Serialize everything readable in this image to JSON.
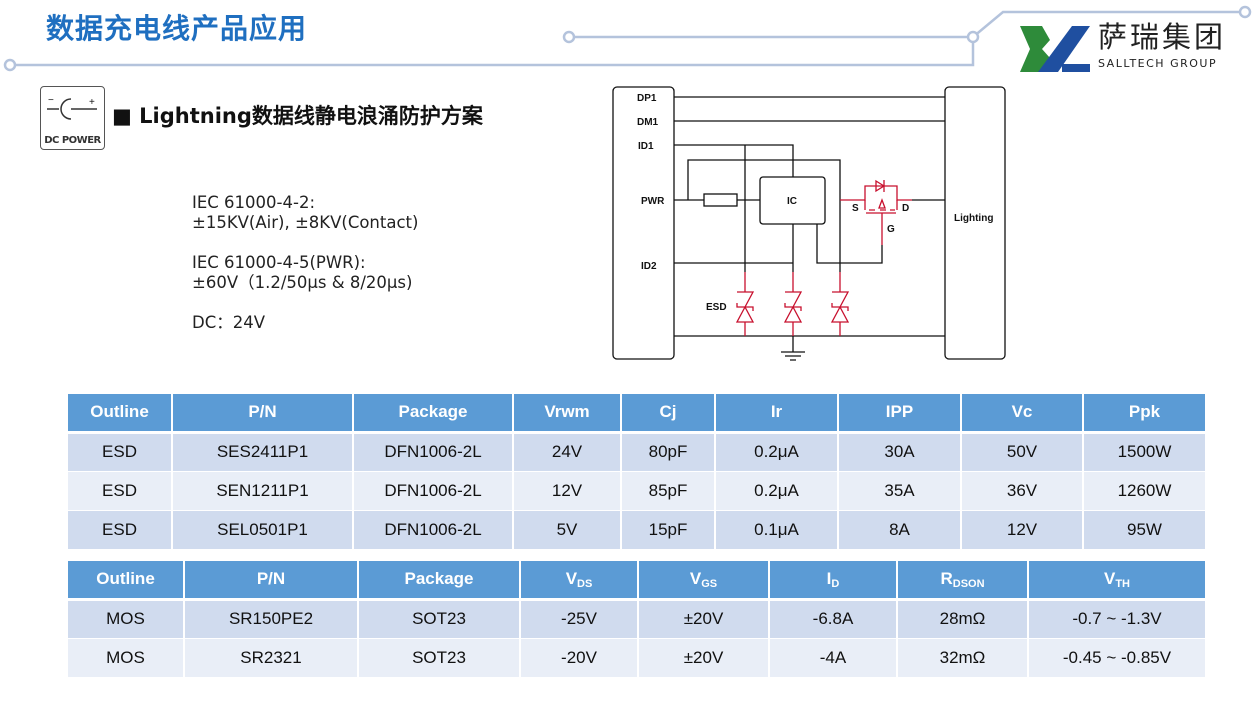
{
  "header": {
    "title": "数据充电线产品应用",
    "logo_cn": "萨瑞集团",
    "logo_en": "SALLTECH GROUP",
    "brand_green": "#2e8b3a",
    "brand_blue": "#1f4fa0"
  },
  "section": {
    "icon_label": "DC POWER",
    "icon_minus": "−",
    "icon_plus": "+",
    "bullet": "■",
    "title": "Lightning数据线静电浪涌防护方案"
  },
  "specs": [
    {
      "line1": "IEC 61000-4-2:",
      "line2": "±15KV(Air), ±8KV(Contact)"
    },
    {
      "line1": "IEC 61000-4-5(PWR):",
      "line2": "±60V（1.2/50μs & 8/20μs)"
    },
    {
      "line1": "DC：24V"
    }
  ],
  "diagram": {
    "pins": [
      "DP1",
      "DM1",
      "ID1",
      "PWR",
      "ID2"
    ],
    "ic": "IC",
    "esd": "ESD",
    "s": "S",
    "d": "D",
    "g": "G",
    "right": "Lighting"
  },
  "esd_table": {
    "headers": [
      "Outline",
      "P/N",
      "Package",
      "Vrwm",
      "Cj",
      "Ir",
      "IPP",
      "Vc",
      "Ppk"
    ],
    "rows": [
      [
        "ESD",
        "SES2411P1",
        "DFN1006-2L",
        "24V",
        "80pF",
        "0.2μA",
        "30A",
        "50V",
        "1500W"
      ],
      [
        "ESD",
        "SEN1211P1",
        "DFN1006-2L",
        "12V",
        "85pF",
        "0.2μA",
        "35A",
        "36V",
        "1260W"
      ],
      [
        "ESD",
        "SEL0501P1",
        "DFN1006-2L",
        "5V",
        "15pF",
        "0.1μA",
        "8A",
        "12V",
        "95W"
      ]
    ]
  },
  "mos_table": {
    "headers": [
      {
        "main": "Outline"
      },
      {
        "main": "P/N"
      },
      {
        "main": "Package"
      },
      {
        "main": "V",
        "sub": "DS"
      },
      {
        "main": "V",
        "sub": "GS"
      },
      {
        "main": "I",
        "sub": "D"
      },
      {
        "main": "R",
        "sub": "DSON"
      },
      {
        "main": "V",
        "sub": "TH"
      }
    ],
    "rows": [
      [
        "MOS",
        "SR150PE2",
        "SOT23",
        "-25V",
        "±20V",
        "-6.8A",
        "28mΩ",
        "-0.7 ~ -1.3V"
      ],
      [
        "MOS",
        "SR2321",
        "SOT23",
        "-20V",
        "±20V",
        "-4A",
        "32mΩ",
        "-0.45 ~ -0.85V"
      ]
    ]
  }
}
